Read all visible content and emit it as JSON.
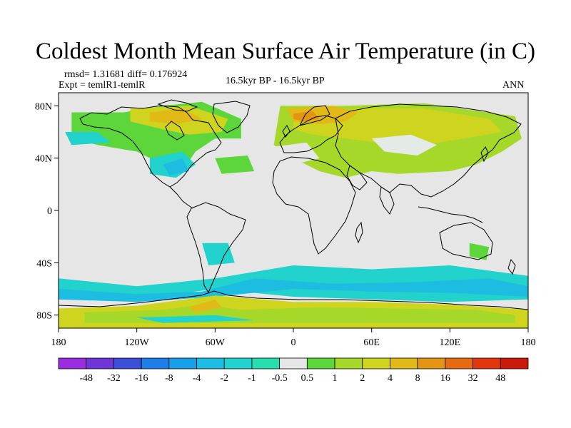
{
  "title": "Coldest Month Mean Surface Air Temperature (in C)",
  "stats": "rmsd= 1.31681 diff= 0.176924",
  "experiment": "Expt = temlR1-temlR",
  "period": "16.5kyr BP - 16.5kyr BP",
  "season": "ANN",
  "map": {
    "projection": "cylindrical-equidistant",
    "lon_range": [
      -180,
      180
    ],
    "lat_range": [
      -90,
      90
    ],
    "lat_ticks": [
      {
        "value": 80,
        "label": "80N"
      },
      {
        "value": 40,
        "label": "40N"
      },
      {
        "value": 0,
        "label": "0"
      },
      {
        "value": -40,
        "label": "40S"
      },
      {
        "value": -80,
        "label": "80S"
      }
    ],
    "lon_ticks": [
      {
        "value": -180,
        "label": "180"
      },
      {
        "value": -120,
        "label": "120W"
      },
      {
        "value": -60,
        "label": "60W"
      },
      {
        "value": 0,
        "label": "0"
      },
      {
        "value": 60,
        "label": "60E"
      },
      {
        "value": 120,
        "label": "120E"
      },
      {
        "value": 180,
        "label": "180"
      }
    ],
    "background_color": "#e6e6e6",
    "coastline_color": "#000000"
  },
  "colorbar": {
    "labels": [
      "-48",
      "-32",
      "-16",
      "-8",
      "-4",
      "-2",
      "-1",
      "-0.5",
      "0.5",
      "1",
      "2",
      "4",
      "8",
      "16",
      "32",
      "48"
    ],
    "colors": [
      "#9a2de0",
      "#6f35d8",
      "#3b4fd8",
      "#1e7ee8",
      "#16a0e8",
      "#1cbde0",
      "#22d2cc",
      "#27dfae",
      "#e6e6e6",
      "#5cd63a",
      "#a6d82a",
      "#cfd51e",
      "#e2ba17",
      "#e49513",
      "#e66a12",
      "#e2360d",
      "#cc1a0a"
    ]
  },
  "regions": [
    {
      "kind": "change",
      "color": "#5cd63a",
      "pts": [
        [
          -170,
          75
        ],
        [
          -130,
          75
        ],
        [
          -100,
          80
        ],
        [
          -70,
          83
        ],
        [
          -40,
          70
        ],
        [
          -40,
          55
        ],
        [
          -60,
          55
        ],
        [
          -75,
          45
        ],
        [
          -85,
          30
        ],
        [
          -100,
          35
        ],
        [
          -120,
          45
        ],
        [
          -150,
          50
        ],
        [
          -170,
          55
        ]
      ]
    },
    {
      "kind": "change",
      "color": "#a6d82a",
      "pts": [
        [
          -10,
          80
        ],
        [
          40,
          80
        ],
        [
          100,
          82
        ],
        [
          170,
          72
        ],
        [
          175,
          55
        ],
        [
          160,
          45
        ],
        [
          140,
          35
        ],
        [
          120,
          30
        ],
        [
          80,
          28
        ],
        [
          60,
          30
        ],
        [
          40,
          25
        ],
        [
          20,
          30
        ],
        [
          0,
          40
        ],
        [
          -15,
          50
        ]
      ]
    },
    {
      "kind": "change",
      "color": "#cfd51e",
      "pts": [
        [
          -125,
          78
        ],
        [
          -80,
          80
        ],
        [
          -50,
          70
        ],
        [
          -55,
          60
        ],
        [
          -80,
          58
        ],
        [
          -100,
          62
        ],
        [
          -125,
          68
        ]
      ]
    },
    {
      "kind": "change",
      "color": "#cfd51e",
      "pts": [
        [
          0,
          72
        ],
        [
          50,
          78
        ],
        [
          100,
          78
        ],
        [
          150,
          70
        ],
        [
          160,
          60
        ],
        [
          130,
          55
        ],
        [
          100,
          50
        ],
        [
          80,
          50
        ],
        [
          40,
          55
        ],
        [
          15,
          58
        ],
        [
          0,
          62
        ]
      ]
    },
    {
      "kind": "change",
      "color": "#e2ba17",
      "pts": [
        [
          -5,
          78
        ],
        [
          30,
          80
        ],
        [
          50,
          75
        ],
        [
          40,
          68
        ],
        [
          20,
          66
        ],
        [
          0,
          68
        ]
      ]
    },
    {
      "kind": "change",
      "color": "#e2ba17",
      "pts": [
        [
          -110,
          75
        ],
        [
          -85,
          78
        ],
        [
          -70,
          70
        ],
        [
          -90,
          66
        ],
        [
          -110,
          68
        ]
      ]
    },
    {
      "kind": "change",
      "color": "#e49513",
      "pts": [
        [
          0,
          74
        ],
        [
          15,
          76
        ],
        [
          20,
          70
        ],
        [
          8,
          68
        ],
        [
          0,
          70
        ]
      ]
    },
    {
      "kind": "change",
      "color": "#e4ebe6",
      "pts": [
        [
          60,
          55
        ],
        [
          90,
          58
        ],
        [
          110,
          50
        ],
        [
          95,
          42
        ],
        [
          70,
          45
        ]
      ]
    },
    {
      "kind": "change",
      "color": "#e6e6e6",
      "pts": [
        [
          -20,
          48
        ],
        [
          10,
          52
        ],
        [
          20,
          40
        ],
        [
          0,
          35
        ],
        [
          -20,
          38
        ]
      ]
    },
    {
      "kind": "change",
      "color": "#22d2cc",
      "pts": [
        [
          -110,
          40
        ],
        [
          -85,
          45
        ],
        [
          -75,
          35
        ],
        [
          -90,
          25
        ],
        [
          -110,
          28
        ]
      ]
    },
    {
      "kind": "change",
      "color": "#1cbde0",
      "pts": [
        [
          -100,
          35
        ],
        [
          -85,
          40
        ],
        [
          -80,
          30
        ],
        [
          -95,
          27
        ]
      ]
    },
    {
      "kind": "change",
      "color": "#22d2cc",
      "pts": [
        [
          -175,
          60
        ],
        [
          -150,
          60
        ],
        [
          -140,
          52
        ],
        [
          -170,
          50
        ]
      ]
    },
    {
      "kind": "change",
      "color": "#5cd63a",
      "pts": [
        [
          -60,
          40
        ],
        [
          -35,
          42
        ],
        [
          -30,
          30
        ],
        [
          -55,
          28
        ]
      ]
    },
    {
      "kind": "change",
      "color": "#22d2cc",
      "pts": [
        [
          -70,
          -25
        ],
        [
          -50,
          -25
        ],
        [
          -45,
          -40
        ],
        [
          -65,
          -42
        ]
      ]
    },
    {
      "kind": "change",
      "color": "#5cd63a",
      "pts": [
        [
          135,
          -25
        ],
        [
          150,
          -28
        ],
        [
          148,
          -38
        ],
        [
          135,
          -35
        ]
      ]
    },
    {
      "kind": "change",
      "color": "#22d2cc",
      "pts": [
        [
          -180,
          -52
        ],
        [
          -120,
          -58
        ],
        [
          -60,
          -52
        ],
        [
          0,
          -42
        ],
        [
          60,
          -45
        ],
        [
          120,
          -42
        ],
        [
          180,
          -50
        ],
        [
          180,
          -68
        ],
        [
          120,
          -70
        ],
        [
          60,
          -68
        ],
        [
          0,
          -66
        ],
        [
          -60,
          -60
        ],
        [
          -120,
          -68
        ],
        [
          -180,
          -68
        ]
      ]
    },
    {
      "kind": "change",
      "color": "#1cbde0",
      "pts": [
        [
          -180,
          -60
        ],
        [
          -120,
          -64
        ],
        [
          -70,
          -62
        ],
        [
          -30,
          -52
        ],
        [
          30,
          -56
        ],
        [
          90,
          -55
        ],
        [
          150,
          -52
        ],
        [
          180,
          -58
        ],
        [
          180,
          -66
        ],
        [
          120,
          -63
        ],
        [
          60,
          -62
        ],
        [
          0,
          -60
        ],
        [
          -60,
          -66
        ],
        [
          -120,
          -70
        ],
        [
          -180,
          -68
        ]
      ]
    },
    {
      "kind": "change",
      "color": "#cfd51e",
      "pts": [
        [
          -180,
          -75
        ],
        [
          -120,
          -73
        ],
        [
          -60,
          -65
        ],
        [
          0,
          -70
        ],
        [
          60,
          -70
        ],
        [
          120,
          -72
        ],
        [
          180,
          -76
        ],
        [
          180,
          -90
        ],
        [
          -180,
          -90
        ]
      ]
    },
    {
      "kind": "change",
      "color": "#a6d82a",
      "pts": [
        [
          -160,
          -78
        ],
        [
          -100,
          -76
        ],
        [
          -70,
          -72
        ],
        [
          -40,
          -76
        ],
        [
          20,
          -74
        ],
        [
          80,
          -75
        ],
        [
          140,
          -76
        ],
        [
          170,
          -80
        ],
        [
          170,
          -86
        ],
        [
          -160,
          -86
        ]
      ]
    },
    {
      "kind": "change",
      "color": "#22d2cc",
      "pts": [
        [
          -120,
          -82
        ],
        [
          -60,
          -80
        ],
        [
          -30,
          -84
        ],
        [
          -100,
          -86
        ]
      ]
    },
    {
      "kind": "change",
      "color": "#e2ba17",
      "pts": [
        [
          -80,
          -74
        ],
        [
          -60,
          -68
        ],
        [
          -55,
          -74
        ],
        [
          -75,
          -78
        ]
      ]
    }
  ]
}
